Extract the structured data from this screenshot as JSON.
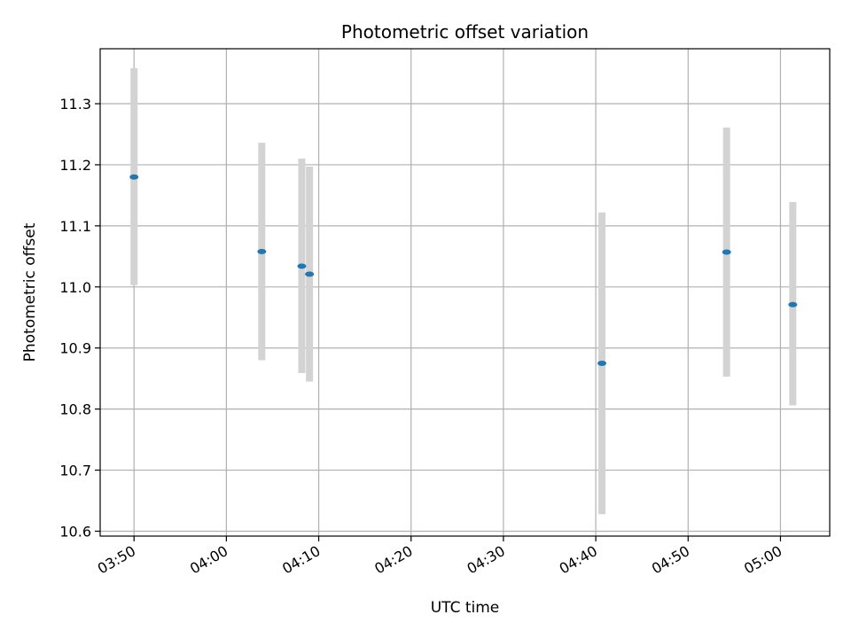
{
  "chart_data": {
    "type": "scatter",
    "title": "Photometric offset variation",
    "xlabel": "UTC time",
    "ylabel": "Photometric offset",
    "x_ticks": [
      "03:50",
      "04:00",
      "04:10",
      "04:20",
      "04:30",
      "04:40",
      "04:50",
      "05:00"
    ],
    "y_ticks": [
      "10.6",
      "10.7",
      "10.8",
      "10.9",
      "11.0",
      "11.1",
      "11.2",
      "11.3"
    ],
    "xlim": [
      "03:46:20",
      "05:05:20"
    ],
    "ylim": [
      10.592,
      11.39
    ],
    "grid": true,
    "marker_color": "#1f77b4",
    "errorbar_color": "#d3d3d3",
    "series": [
      {
        "points": [
          {
            "x": "03:50:00",
            "y": 11.18,
            "err_low": 11.003,
            "err_high": 11.358
          },
          {
            "x": "04:03:50",
            "y": 11.058,
            "err_low": 10.88,
            "err_high": 11.236
          },
          {
            "x": "04:08:10",
            "y": 11.034,
            "err_low": 10.859,
            "err_high": 11.21
          },
          {
            "x": "04:09:00",
            "y": 11.021,
            "err_low": 10.845,
            "err_high": 11.197
          },
          {
            "x": "04:40:40",
            "y": 10.875,
            "err_low": 10.628,
            "err_high": 11.122
          },
          {
            "x": "04:54:10",
            "y": 11.057,
            "err_low": 10.853,
            "err_high": 11.261
          },
          {
            "x": "05:01:20",
            "y": 10.971,
            "err_low": 10.806,
            "err_high": 11.139
          }
        ]
      }
    ]
  }
}
